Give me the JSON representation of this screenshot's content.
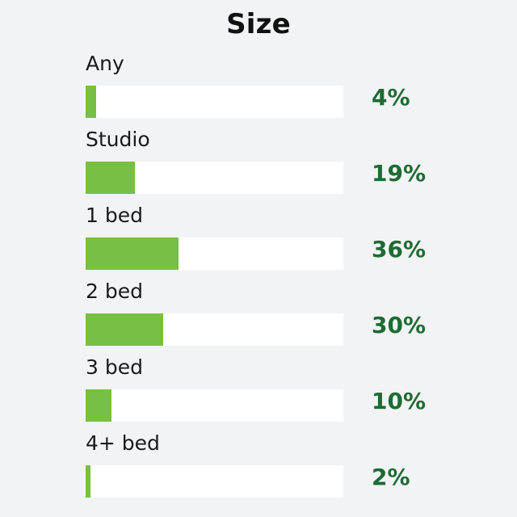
{
  "chart_data": {
    "type": "bar",
    "title": "Size",
    "categories": [
      "Any",
      "Studio",
      "1 bed",
      "2 bed",
      "3 bed",
      "4+ bed"
    ],
    "values": [
      4,
      19,
      36,
      30,
      10,
      2
    ],
    "value_labels": [
      "4%",
      "19%",
      "36%",
      "30%",
      "10%",
      "2%"
    ],
    "ylim": [
      0,
      100
    ],
    "orientation": "horizontal",
    "grid": false
  },
  "colors": {
    "bar_fill": "#78c043",
    "track": "#ffffff",
    "percent_text": "#1e6b33",
    "background": "#f2f3f4"
  }
}
